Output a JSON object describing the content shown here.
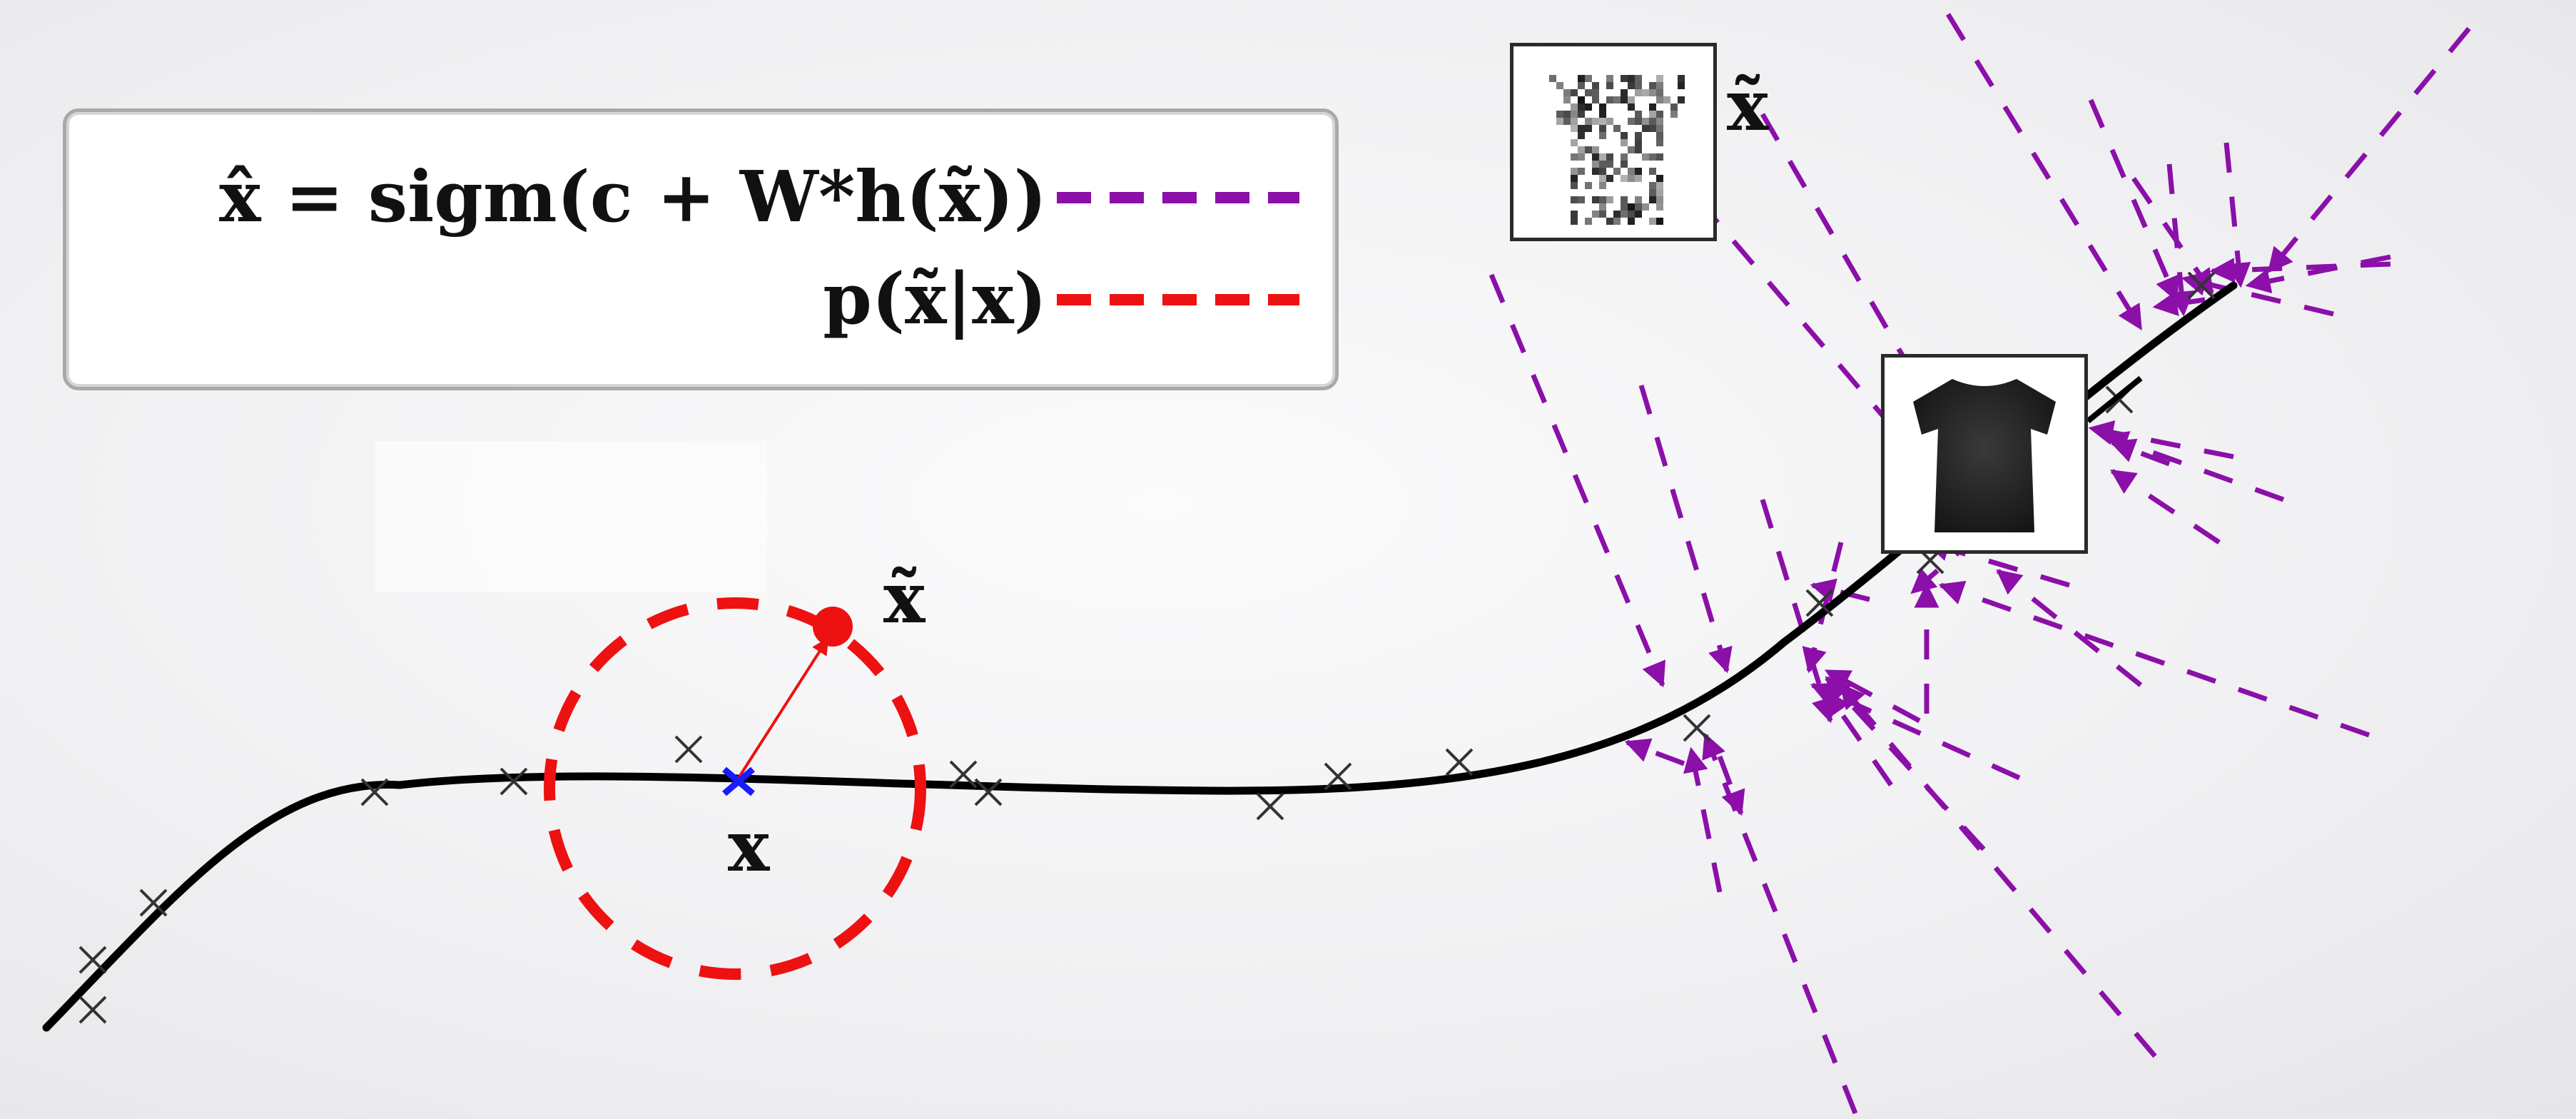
{
  "legend": {
    "reconstruction_formula": "x̂ = sigm(c + W*h(x̃))",
    "corruption_formula": "p(x̃|x)"
  },
  "labels": {
    "noisy_image_label": "x̃",
    "corrupted_point_label": "x̃",
    "clean_point_label": "x"
  },
  "colors": {
    "reconstruction_line": "#8b0fa8",
    "corruption_line": "#ee1111",
    "manifold_curve": "#000000",
    "original_point": "#1a1aff"
  },
  "icons": {
    "noisy_image": "noisy-tshirt-icon",
    "clean_image": "tshirt-icon"
  }
}
